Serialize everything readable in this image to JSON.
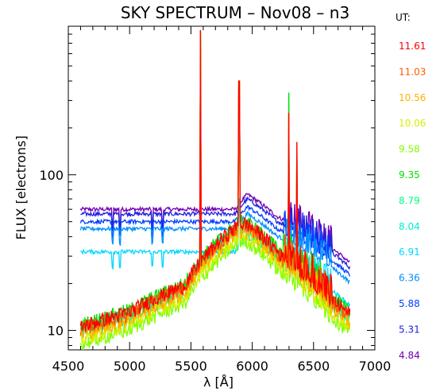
{
  "chart_data": {
    "type": "line",
    "title": "SKY SPECTRUM – Nov08 – n3",
    "xlabel": "λ [Å]",
    "ylabel": "FLUX [electrons]",
    "xlim": [
      4500,
      7000
    ],
    "ylim": [
      7.5,
      900
    ],
    "yscale": "log",
    "x_ticks": [
      4500,
      5000,
      5500,
      6000,
      6500,
      7000
    ],
    "y_ticks": [
      10,
      100
    ],
    "grid": false,
    "legend_title": "UT:",
    "legend_position": "right",
    "series": [
      {
        "name": "11.61",
        "color": "#ff0000",
        "base": 10.5,
        "twilight": 1.0
      },
      {
        "name": "11.03",
        "color": "#ff5a00",
        "base": 10.2,
        "twilight": 1.0
      },
      {
        "name": "10.56",
        "color": "#ffb000",
        "base": 9.8,
        "twilight": 0.96
      },
      {
        "name": "10.06",
        "color": "#d6f000",
        "base": 9.4,
        "twilight": 0.93
      },
      {
        "name": "9.58",
        "color": "#80ff00",
        "base": 9.0,
        "twilight": 0.9
      },
      {
        "name": "9.35",
        "color": "#00e000",
        "base": 10.8,
        "twilight": 1.0
      },
      {
        "name": "8.79",
        "color": "#00ff80",
        "base": 10.0,
        "twilight": 0.97
      },
      {
        "name": "8.04",
        "color": "#00f0d0",
        "base": 10.3,
        "twilight": 0.98
      },
      {
        "name": "6.91",
        "color": "#00d8ff",
        "base": 32,
        "flat": true
      },
      {
        "name": "6.36",
        "color": "#0090ff",
        "base": 45,
        "flat": true
      },
      {
        "name": "5.88",
        "color": "#0040ff",
        "base": 50,
        "flat": true
      },
      {
        "name": "5.31",
        "color": "#2020e0",
        "base": 56,
        "flat": true
      },
      {
        "name": "4.84",
        "color": "#7000b0",
        "base": 60,
        "flat": true
      }
    ],
    "emission_lines": [
      {
        "x": 5577,
        "peak": 850
      },
      {
        "x": 5893,
        "peak": 400
      },
      {
        "x": 6300,
        "peak": 250
      },
      {
        "x": 6363,
        "peak": 120
      }
    ]
  }
}
